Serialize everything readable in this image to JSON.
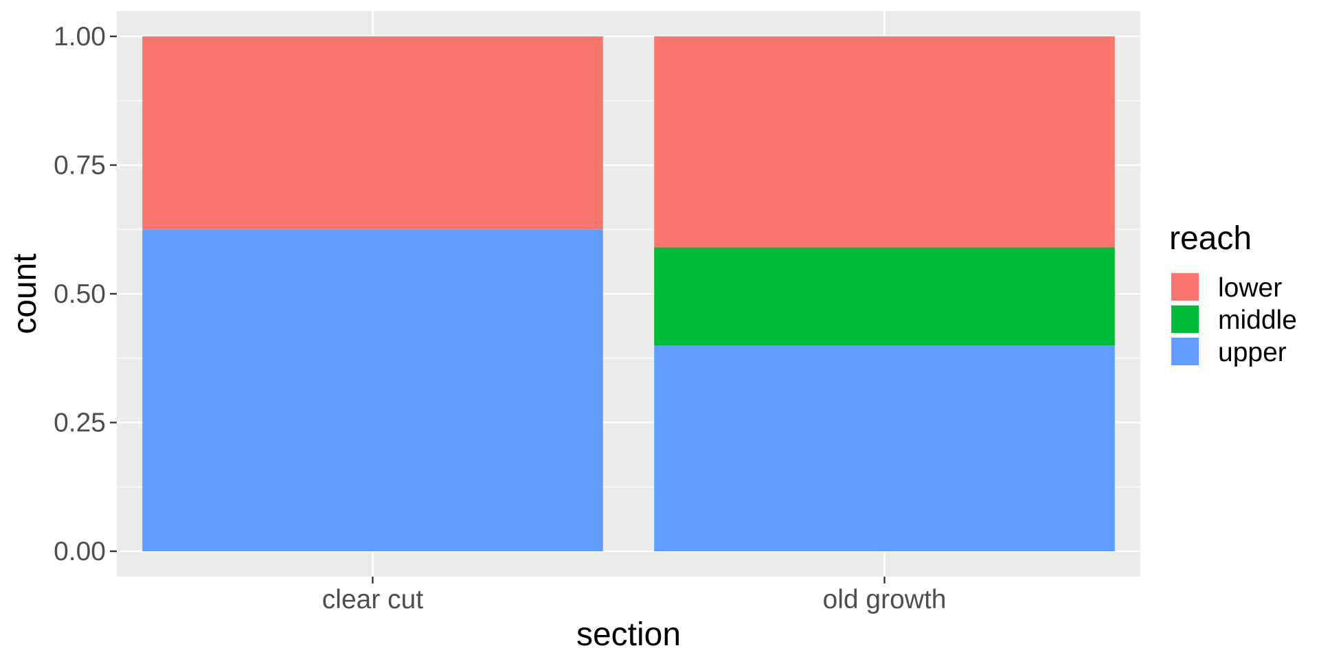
{
  "chart_data": {
    "type": "bar",
    "stacked": true,
    "position": "fill",
    "xlabel": "section",
    "ylabel": "count",
    "categories": [
      "clear cut",
      "old growth"
    ],
    "ylim": [
      0,
      1
    ],
    "yticks": [
      "0.00",
      "0.25",
      "0.50",
      "0.75",
      "1.00"
    ],
    "grid": true,
    "legend": {
      "title": "reach",
      "placement": "right"
    },
    "series": [
      {
        "name": "lower",
        "color": "#F8766D",
        "values": [
          0.375,
          0.41
        ]
      },
      {
        "name": "middle",
        "color": "#00BA38",
        "values": [
          0.0,
          0.19
        ]
      },
      {
        "name": "upper",
        "color": "#619CFF",
        "values": [
          0.625,
          0.4
        ]
      }
    ],
    "stack_order_bottom_to_top": [
      "upper",
      "middle",
      "lower"
    ]
  }
}
